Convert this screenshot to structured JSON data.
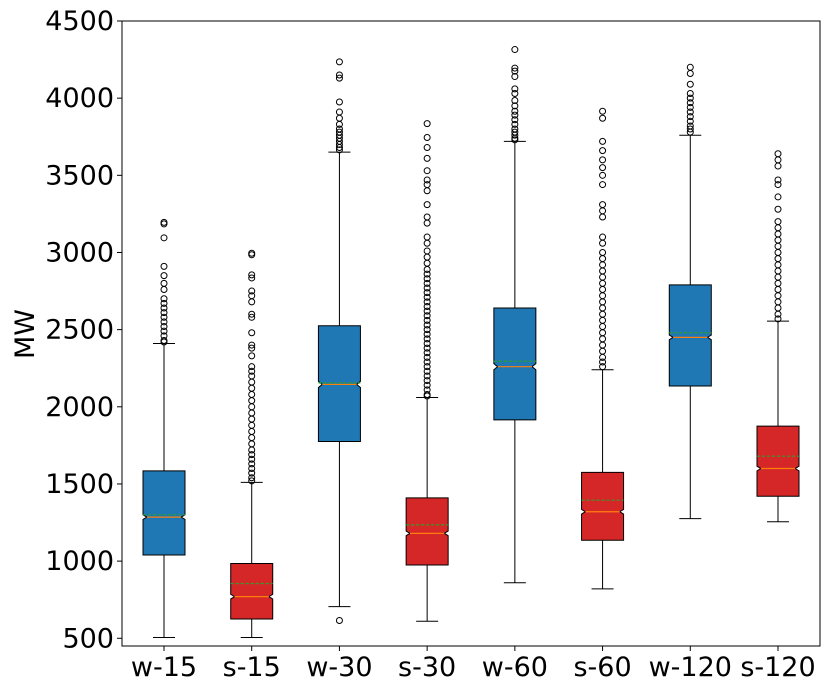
{
  "chart_data": {
    "type": "boxplot",
    "title": "",
    "xlabel": "",
    "ylabel": "MW",
    "ylim": [
      450,
      4500
    ],
    "yticks": [
      500,
      1000,
      1500,
      2000,
      2500,
      3000,
      3500,
      4000,
      4500
    ],
    "ytick_labels": [
      "500",
      "1000",
      "1500",
      "2000",
      "2500",
      "3000",
      "3500",
      "4000",
      "4500"
    ],
    "notched": true,
    "grid": false,
    "colors": {
      "winter": "#1f77b4",
      "summer": "#d62728",
      "median": "#ff7f0e",
      "mean": "#2ca02c"
    },
    "boxes": [
      {
        "label": "w-15",
        "season": "winter",
        "q1": 1040,
        "median": 1285,
        "mean": 1300,
        "q3": 1585,
        "whisker_low": 505,
        "whisker_high": 2410,
        "notch_low": 1270,
        "notch_high": 1300,
        "outliers": [
          3195,
          3185,
          3095,
          2910,
          2850,
          2800,
          2760,
          2700,
          2670,
          2640,
          2610,
          2580,
          2550,
          2520,
          2490,
          2460,
          2430,
          2420
        ]
      },
      {
        "label": "s-15",
        "season": "summer",
        "q1": 625,
        "median": 770,
        "mean": 855,
        "q3": 985,
        "whisker_low": 505,
        "whisker_high": 1510,
        "notch_low": 755,
        "notch_high": 785,
        "outliers": [
          2995,
          2985,
          2855,
          2835,
          2750,
          2720,
          2680,
          2600,
          2580,
          2480,
          2400,
          2380,
          2330,
          2260,
          2230,
          2200,
          2160,
          2120,
          2080,
          2040,
          2000,
          1960,
          1920,
          1880,
          1840,
          1800,
          1760,
          1720,
          1690,
          1660,
          1630,
          1600,
          1570,
          1540,
          1520
        ]
      },
      {
        "label": "w-30",
        "season": "winter",
        "q1": 1775,
        "median": 2145,
        "mean": 2155,
        "q3": 2525,
        "whisker_low": 705,
        "whisker_high": 3650,
        "notch_low": 2125,
        "notch_high": 2165,
        "outliers": [
          615,
          4235,
          4150,
          4130,
          3975,
          3910,
          3870,
          3830,
          3800,
          3780,
          3760,
          3740,
          3720,
          3700,
          3680,
          3665
        ]
      },
      {
        "label": "s-30",
        "season": "summer",
        "q1": 975,
        "median": 1180,
        "mean": 1235,
        "q3": 1410,
        "whisker_low": 610,
        "whisker_high": 2060,
        "notch_low": 1165,
        "notch_high": 1195,
        "outliers": [
          3835,
          3745,
          3680,
          3610,
          3530,
          3470,
          3440,
          3400,
          3310,
          3230,
          3190,
          3100,
          3060,
          3010,
          2970,
          2930,
          2890,
          2860,
          2830,
          2800,
          2770,
          2740,
          2710,
          2680,
          2650,
          2620,
          2590,
          2560,
          2530,
          2500,
          2470,
          2440,
          2410,
          2380,
          2350,
          2320,
          2290,
          2260,
          2230,
          2200,
          2170,
          2140,
          2110,
          2080,
          2070
        ]
      },
      {
        "label": "w-60",
        "season": "winter",
        "q1": 1915,
        "median": 2260,
        "mean": 2295,
        "q3": 2640,
        "whisker_low": 860,
        "whisker_high": 3720,
        "notch_low": 2240,
        "notch_high": 2280,
        "outliers": [
          4315,
          4195,
          4175,
          4140,
          4060,
          4030,
          3985,
          3950,
          3915,
          3890,
          3860,
          3830,
          3800,
          3780,
          3760,
          3740,
          3730
        ]
      },
      {
        "label": "s-60",
        "season": "summer",
        "q1": 1135,
        "median": 1320,
        "mean": 1395,
        "q3": 1575,
        "whisker_low": 820,
        "whisker_high": 2240,
        "notch_low": 1305,
        "notch_high": 1335,
        "outliers": [
          3915,
          3870,
          3720,
          3660,
          3600,
          3550,
          3500,
          3440,
          3310,
          3270,
          3230,
          3100,
          3060,
          3000,
          2960,
          2920,
          2880,
          2840,
          2800,
          2760,
          2720,
          2680,
          2640,
          2600,
          2560,
          2520,
          2480,
          2440,
          2400,
          2360,
          2320,
          2290,
          2260
        ]
      },
      {
        "label": "w-120",
        "season": "winter",
        "q1": 2135,
        "median": 2450,
        "mean": 2480,
        "q3": 2790,
        "whisker_low": 1275,
        "whisker_high": 3760,
        "notch_low": 2435,
        "notch_high": 2465,
        "outliers": [
          4200,
          4160,
          4090,
          4030,
          4000,
          3970,
          3940,
          3910,
          3880,
          3850,
          3820,
          3800,
          3780
        ]
      },
      {
        "label": "s-120",
        "season": "summer",
        "q1": 1420,
        "median": 1600,
        "mean": 1680,
        "q3": 1875,
        "whisker_low": 1255,
        "whisker_high": 2555,
        "notch_low": 1585,
        "notch_high": 1615,
        "outliers": [
          3640,
          3600,
          3560,
          3470,
          3440,
          3360,
          3280,
          3200,
          3160,
          3120,
          3080,
          3040,
          3000,
          2960,
          2920,
          2880,
          2840,
          2800,
          2760,
          2720,
          2680,
          2640,
          2600,
          2570
        ]
      }
    ]
  }
}
